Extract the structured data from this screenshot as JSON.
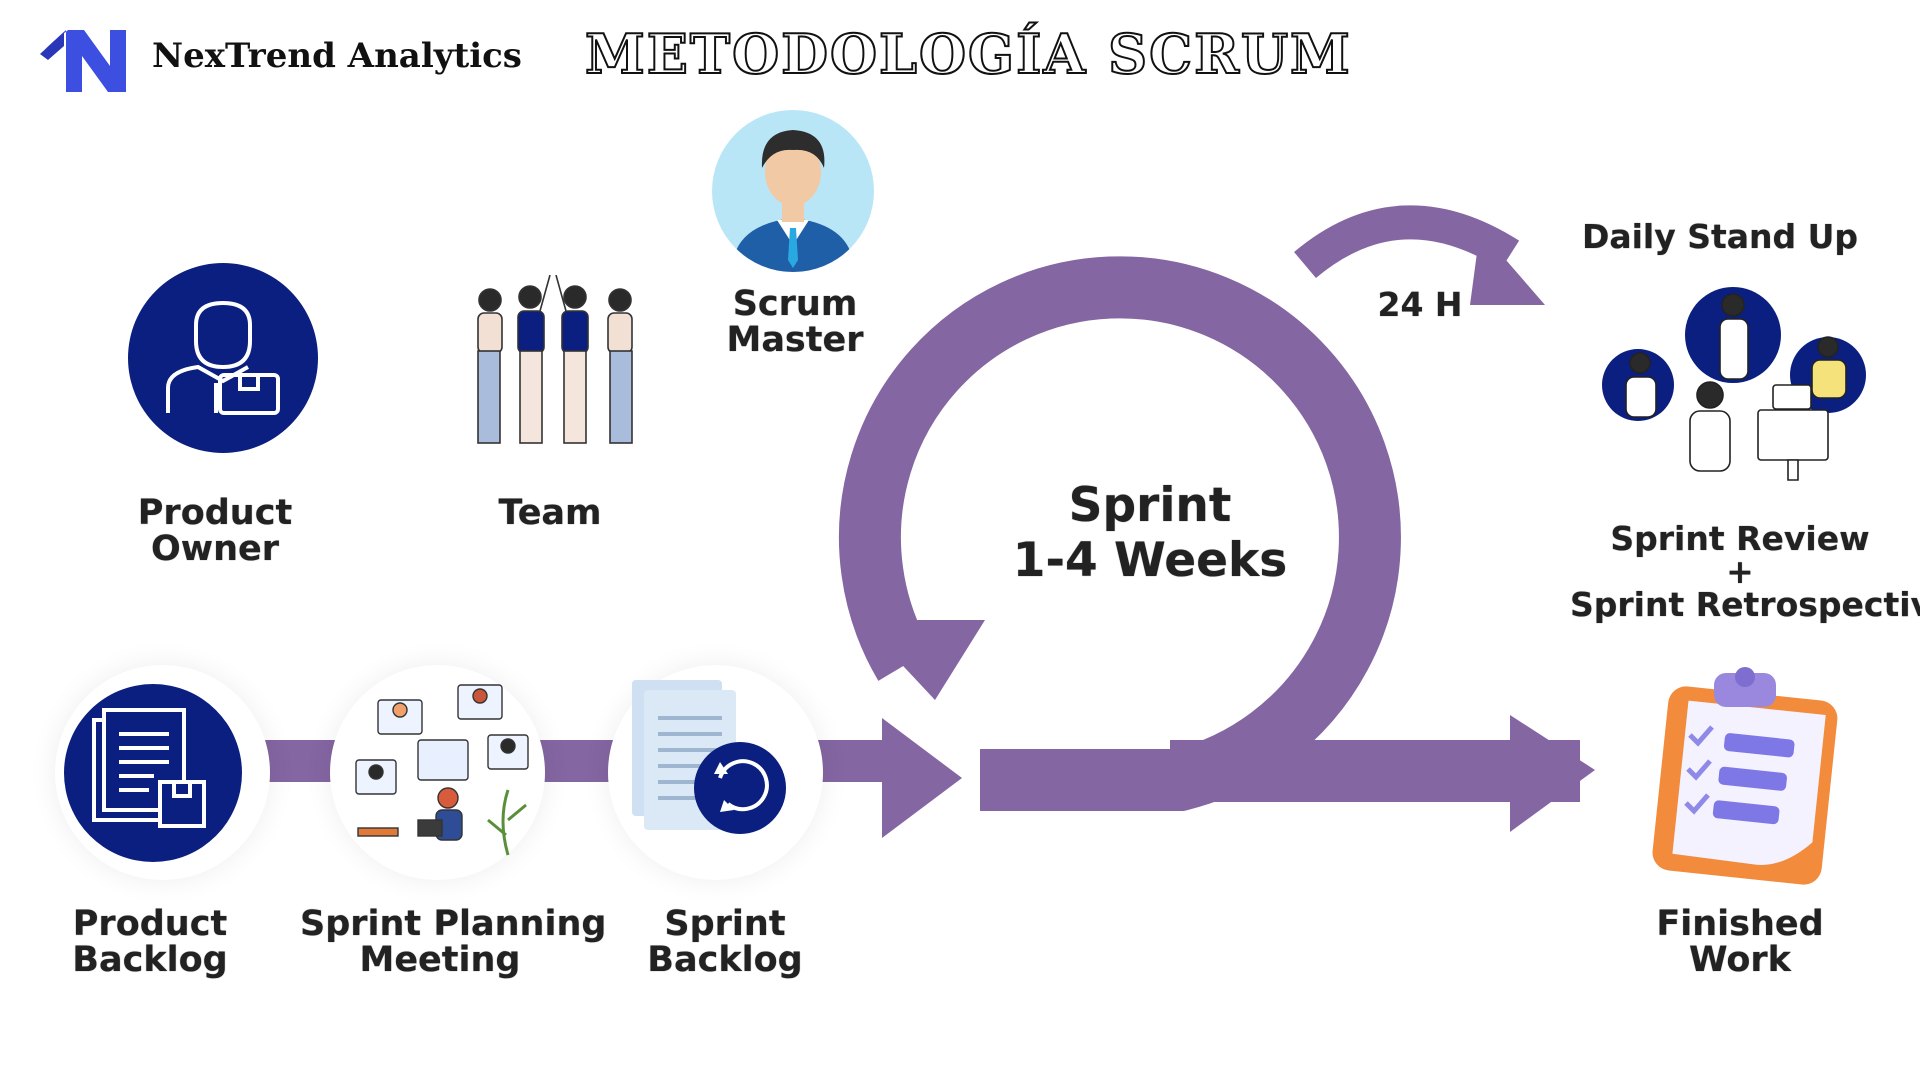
{
  "header": {
    "brand_name": "NexTrend Analytics",
    "title": "METODOLOGÍA SCRUM"
  },
  "roles": {
    "product_owner": [
      "Product",
      "Owner"
    ],
    "team": "Team",
    "scrum_master": [
      "Scrum",
      "Master"
    ]
  },
  "cycle": {
    "sprint_line1": "Sprint",
    "sprint_line2": "1-4 Weeks",
    "daily_interval": "24 H"
  },
  "events": {
    "daily_standup": "Daily Stand Up",
    "review_line1": "Sprint Review",
    "review_plus": "+",
    "review_line2": "Sprint Retrospective"
  },
  "flow": {
    "product_backlog": [
      "Product",
      "Backlog"
    ],
    "sprint_planning": [
      "Sprint Planning",
      "Meeting"
    ],
    "sprint_backlog": [
      "Sprint",
      "Backlog"
    ],
    "finished_work": [
      "Finished",
      "Work"
    ]
  },
  "colors": {
    "arrow": "#8466a2",
    "icon_navy": "#0b1f80",
    "logo_blue": "#3c4fe0"
  }
}
